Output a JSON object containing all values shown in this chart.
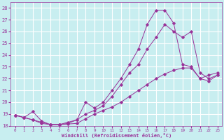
{
  "xlabel": "Windchill (Refroidissement éolien,°C)",
  "background_color": "#c8eef0",
  "grid_color": "#ffffff",
  "line_color": "#993399",
  "ylim": [
    18,
    28.5
  ],
  "xlim": [
    -0.5,
    23.5
  ],
  "yticks": [
    18,
    19,
    20,
    21,
    22,
    23,
    24,
    25,
    26,
    27,
    28
  ],
  "xticks": [
    0,
    1,
    2,
    3,
    4,
    5,
    6,
    7,
    8,
    9,
    10,
    11,
    12,
    13,
    14,
    15,
    16,
    17,
    18,
    19,
    20,
    21,
    22,
    23
  ],
  "series": [
    {
      "x": [
        0,
        1,
        2,
        3,
        4,
        5,
        6,
        7,
        8,
        9,
        10,
        11,
        12,
        13,
        14,
        15,
        16,
        17,
        18,
        19,
        20,
        21,
        22,
        23
      ],
      "y": [
        18.9,
        18.7,
        18.5,
        18.2,
        18.1,
        18.1,
        18.15,
        18.2,
        18.6,
        19.0,
        19.3,
        19.6,
        20.0,
        20.5,
        21.0,
        21.5,
        22.0,
        22.4,
        22.7,
        22.9,
        22.9,
        22.0,
        21.8,
        22.3
      ]
    },
    {
      "x": [
        0,
        1,
        2,
        3,
        4,
        5,
        6,
        7,
        8,
        9,
        10,
        11,
        12,
        13,
        14,
        15,
        16,
        17,
        18,
        19,
        20,
        21,
        22,
        23
      ],
      "y": [
        18.9,
        18.7,
        18.5,
        18.3,
        18.1,
        18.1,
        18.2,
        18.5,
        19.0,
        19.3,
        19.7,
        20.5,
        21.5,
        22.5,
        23.2,
        24.5,
        25.5,
        26.6,
        26.0,
        25.5,
        26.0,
        22.5,
        22.0,
        22.3
      ]
    },
    {
      "x": [
        0,
        1,
        2,
        3,
        4,
        5,
        6,
        7,
        8,
        9,
        10,
        11,
        12,
        13,
        14,
        15,
        16,
        17,
        18,
        19,
        20,
        21,
        22,
        23
      ],
      "y": [
        18.9,
        18.7,
        19.2,
        18.4,
        18.1,
        18.1,
        18.3,
        18.5,
        20.0,
        19.5,
        20.0,
        21.0,
        22.0,
        23.2,
        24.5,
        26.6,
        27.8,
        27.8,
        26.7,
        23.2,
        23.0,
        22.0,
        22.3,
        22.5
      ]
    }
  ]
}
